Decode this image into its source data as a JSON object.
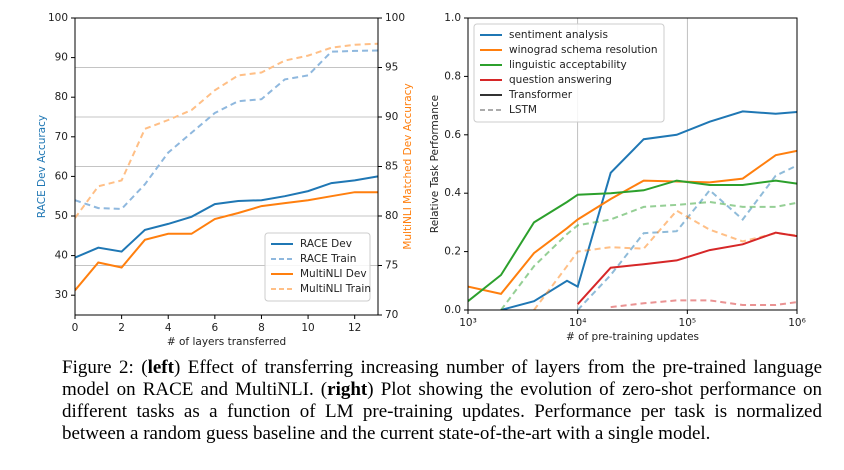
{
  "chart_data": [
    {
      "type": "line",
      "xlabel": "# of layers transferred",
      "ylabel": "RACE Dev Accuracy",
      "y2label": "MultiNLI Matched Dev Accuracy",
      "x": [
        0,
        1,
        2,
        3,
        4,
        5,
        6,
        7,
        8,
        9,
        10,
        11,
        12,
        13
      ],
      "xlim": [
        0,
        13
      ],
      "xticks": [
        0,
        2,
        4,
        6,
        8,
        10,
        12
      ],
      "ylim": [
        25,
        100
      ],
      "yticks": [
        30,
        40,
        50,
        60,
        70,
        80,
        90,
        100
      ],
      "y2lim": [
        70,
        100
      ],
      "y2ticks": [
        70,
        75,
        80,
        85,
        90,
        95,
        100
      ],
      "grid": "y2",
      "legend": "lower right",
      "series": [
        {
          "name": "RACE Dev",
          "color": "#1f77b4",
          "dashed": false,
          "values": [
            39.5,
            42,
            41,
            46.5,
            48,
            49.8,
            53,
            53.8,
            54,
            55,
            56.3,
            58.3,
            59,
            60
          ]
        },
        {
          "name": "RACE Train",
          "color": "#8fb8de",
          "dashed": true,
          "values": [
            54,
            52,
            51.8,
            58,
            66,
            71,
            76,
            79,
            79.5,
            84.5,
            85.5,
            91.5,
            91.7,
            91.8
          ]
        },
        {
          "name": "MultiNLI Dev",
          "color": "#ff7f0e",
          "dashed": false,
          "axis": "y2",
          "values": [
            72.5,
            75.3,
            74.8,
            77.6,
            78.2,
            78.2,
            79.7,
            80.3,
            81,
            81.3,
            81.6,
            82,
            82.4,
            82.4
          ]
        },
        {
          "name": "MultiNLI Train",
          "color": "#ffbf86",
          "dashed": true,
          "axis": "y2",
          "values": [
            79.8,
            83,
            83.6,
            88.8,
            89.7,
            90.7,
            92.7,
            94.2,
            94.5,
            95.7,
            96.2,
            97,
            97.3,
            97.4
          ]
        }
      ]
    },
    {
      "type": "line",
      "xscale": "log",
      "xlabel": "# of pre-training updates",
      "ylabel": "Relative Task Performance",
      "x": [
        1000,
        2000,
        4000,
        8000,
        10000,
        20000,
        40000,
        80000,
        160000,
        320000,
        640000,
        1000000
      ],
      "xlim": [
        1000,
        1000000
      ],
      "xticks": [
        {
          "value": 1000,
          "label": "10³"
        },
        {
          "value": 10000,
          "label": "10⁴"
        },
        {
          "value": 100000,
          "label": "10⁵"
        },
        {
          "value": 1000000,
          "label": "10⁶"
        }
      ],
      "ylim": [
        0,
        1
      ],
      "yticks": [
        {
          "value": 0,
          "label": "0.0"
        },
        0.2,
        0.4,
        0.6,
        0.8,
        {
          "value": 1,
          "label": "1.0"
        }
      ],
      "grid": "x",
      "legend": "upper left",
      "models": [
        "Transformer",
        "LSTM"
      ],
      "series": [
        {
          "name": "sentiment analysis",
          "color": "#1f77b4",
          "transformer": [
            null,
            0.0,
            0.03,
            0.1,
            0.08,
            0.47,
            0.585,
            0.6,
            0.645,
            0.68,
            0.672,
            0.678
          ],
          "lstm": [
            null,
            null,
            null,
            null,
            0.0,
            0.12,
            0.263,
            0.27,
            0.41,
            0.31,
            0.46,
            0.495
          ]
        },
        {
          "name": "winograd schema resolution",
          "color": "#ff7f0e",
          "transformer": [
            0.08,
            0.055,
            0.195,
            0.28,
            0.31,
            0.38,
            0.443,
            0.44,
            0.437,
            0.45,
            0.53,
            0.545
          ],
          "lstm": [
            null,
            null,
            0.0,
            0.15,
            0.2,
            0.215,
            0.21,
            0.34,
            0.275,
            0.235,
            0.263,
            0.255
          ]
        },
        {
          "name": "linguistic acceptability",
          "color": "#2ca02c",
          "transformer": [
            0.03,
            0.12,
            0.3,
            0.37,
            0.395,
            0.4,
            0.41,
            0.443,
            0.428,
            0.428,
            0.443,
            0.433
          ],
          "lstm": [
            null,
            0.0,
            0.15,
            0.26,
            0.29,
            0.31,
            0.353,
            0.36,
            0.37,
            0.353,
            0.353,
            0.367
          ]
        },
        {
          "name": "question answering",
          "color": "#d62728",
          "transformer": [
            null,
            null,
            null,
            null,
            0.02,
            0.145,
            0.157,
            0.17,
            0.205,
            0.225,
            0.265,
            0.253
          ],
          "lstm": [
            null,
            null,
            null,
            null,
            null,
            0.01,
            0.023,
            0.033,
            0.033,
            0.017,
            0.017,
            0.027
          ]
        }
      ]
    }
  ],
  "caption": [
    {
      "text": "Figure 2: ("
    },
    {
      "text": "left",
      "bold": true
    },
    {
      "text": ") Effect of transferring increasing number of layers from the pre-trained language model on RACE and MultiNLI. ("
    },
    {
      "text": "right",
      "bold": true
    },
    {
      "text": ") Plot showing the evolution of zero-shot performance on different tasks as a function of LM pre-training updates. Performance per task is normalized between a random guess baseline and the current state-of-the-art with a single model."
    }
  ]
}
